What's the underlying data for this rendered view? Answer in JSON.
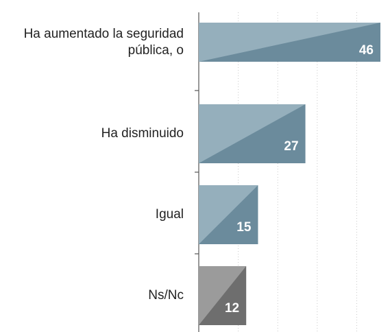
{
  "chart_data": {
    "type": "bar",
    "orientation": "horizontal",
    "categories": [
      "Ha aumentado la seguridad pública, o",
      "Ha disminuido",
      "Igual",
      "Ns/Nc"
    ],
    "values": [
      46,
      27,
      15,
      12
    ],
    "colors": [
      "#6b8b9c",
      "#6b8b9c",
      "#6b8b9c",
      "#6e6e6e"
    ],
    "shade_colors": [
      "#95afbc",
      "#95afbc",
      "#95afbc",
      "#9b9b9b"
    ],
    "xlim": [
      0,
      46
    ],
    "xticks": [
      10,
      20,
      30,
      40
    ],
    "grid": true
  }
}
